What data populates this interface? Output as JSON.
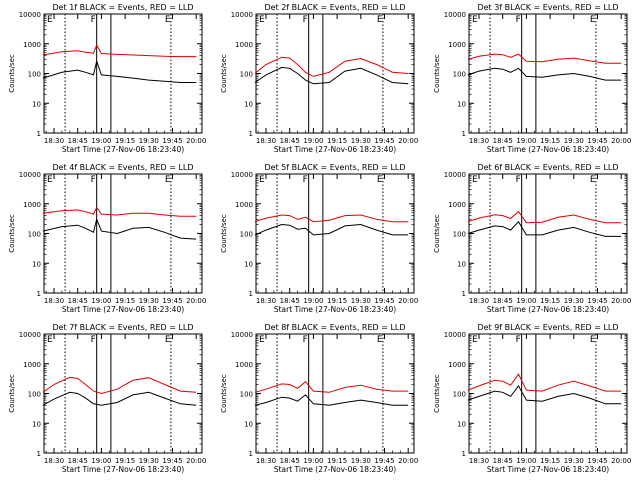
{
  "colors": {
    "events": "#000000",
    "lld": "#e00000",
    "marker": "#000000",
    "background": "#ffffff"
  },
  "shared": {
    "xlabel": "Start Time (27-Nov-06 18:23:40)",
    "ylabel": "Counts/sec",
    "x_tick_labels": [
      "18:30",
      "18:45",
      "19:00",
      "19:15",
      "19:30",
      "19:45",
      "20:00"
    ],
    "y_tick_labels": [
      "1",
      "10",
      "100",
      "1000",
      "10000"
    ],
    "event_labels": [
      "E",
      "F",
      "E"
    ]
  },
  "chart_data": [
    {
      "type": "line",
      "title": "Det 1f BLACK = Events, RED = LLD",
      "xlim": [
        "18:23:40",
        "20:03:40"
      ],
      "ylim": [
        1,
        10000
      ],
      "yscale": "log",
      "x": [
        "18:23",
        "18:35",
        "18:45",
        "18:50",
        "18:55",
        "18:57",
        "19:00",
        "19:10",
        "19:20",
        "19:30",
        "19:40",
        "19:50",
        "20:00"
      ],
      "series": [
        {
          "name": "Events",
          "values": [
            70,
            110,
            130,
            110,
            90,
            260,
            90,
            80,
            70,
            60,
            55,
            50,
            50
          ]
        },
        {
          "name": "LLD",
          "values": [
            420,
            540,
            580,
            520,
            480,
            900,
            470,
            440,
            420,
            400,
            380,
            370,
            370
          ]
        }
      ],
      "event_markers": [
        "18:37",
        "18:57",
        "19:06",
        "19:44"
      ]
    },
    {
      "type": "line",
      "title": "Det 2f BLACK = Events, RED = LLD",
      "xlim": [
        "18:23:40",
        "20:03:40"
      ],
      "ylim": [
        1,
        10000
      ],
      "yscale": "log",
      "x": [
        "18:23",
        "18:30",
        "18:40",
        "18:45",
        "18:50",
        "18:55",
        "19:00",
        "19:10",
        "19:20",
        "19:30",
        "19:40",
        "19:50",
        "20:00"
      ],
      "series": [
        {
          "name": "Events",
          "values": [
            50,
            90,
            160,
            150,
            100,
            60,
            45,
            50,
            120,
            150,
            90,
            50,
            45
          ]
        },
        {
          "name": "LLD",
          "values": [
            100,
            200,
            350,
            330,
            200,
            110,
            80,
            110,
            260,
            320,
            200,
            110,
            100
          ]
        }
      ],
      "event_markers": [
        "18:37",
        "18:57",
        "19:06",
        "19:44"
      ]
    },
    {
      "type": "line",
      "title": "Det 3f BLACK = Events, RED = LLD",
      "xlim": [
        "18:23:40",
        "20:03:40"
      ],
      "ylim": [
        1,
        10000
      ],
      "yscale": "log",
      "x": [
        "18:23",
        "18:30",
        "18:40",
        "18:45",
        "18:50",
        "18:55",
        "19:00",
        "19:10",
        "19:20",
        "19:30",
        "19:40",
        "19:50",
        "20:00"
      ],
      "series": [
        {
          "name": "Events",
          "values": [
            90,
            120,
            150,
            140,
            110,
            150,
            80,
            75,
            90,
            100,
            80,
            60,
            60
          ]
        },
        {
          "name": "LLD",
          "values": [
            300,
            380,
            450,
            430,
            350,
            450,
            260,
            250,
            300,
            330,
            270,
            220,
            220
          ]
        }
      ],
      "event_markers": [
        "18:37",
        "18:57",
        "19:06",
        "19:44"
      ]
    },
    {
      "type": "line",
      "title": "Det 4f BLACK = Events, RED = LLD",
      "xlim": [
        "18:23:40",
        "20:03:40"
      ],
      "ylim": [
        1,
        10000
      ],
      "yscale": "log",
      "x": [
        "18:23",
        "18:35",
        "18:45",
        "18:50",
        "18:55",
        "18:57",
        "19:00",
        "19:10",
        "19:20",
        "19:30",
        "19:40",
        "19:50",
        "20:00"
      ],
      "series": [
        {
          "name": "Events",
          "values": [
            120,
            170,
            190,
            150,
            110,
            300,
            120,
            100,
            150,
            160,
            110,
            70,
            65
          ]
        },
        {
          "name": "LLD",
          "values": [
            480,
            580,
            620,
            540,
            450,
            750,
            450,
            420,
            480,
            480,
            420,
            380,
            380
          ]
        }
      ],
      "event_markers": [
        "18:37",
        "18:57",
        "19:06",
        "19:44"
      ]
    },
    {
      "type": "line",
      "title": "Det 5f BLACK = Events, RED = LLD",
      "xlim": [
        "18:23:40",
        "20:03:40"
      ],
      "ylim": [
        1,
        10000
      ],
      "yscale": "log",
      "x": [
        "18:23",
        "18:30",
        "18:40",
        "18:45",
        "18:50",
        "18:55",
        "19:00",
        "19:10",
        "19:20",
        "19:30",
        "19:40",
        "19:50",
        "20:00"
      ],
      "series": [
        {
          "name": "Events",
          "values": [
            90,
            130,
            200,
            190,
            140,
            150,
            90,
            100,
            180,
            200,
            130,
            90,
            90
          ]
        },
        {
          "name": "LLD",
          "values": [
            250,
            330,
            420,
            400,
            300,
            350,
            250,
            280,
            400,
            420,
            300,
            250,
            250
          ]
        }
      ],
      "event_markers": [
        "18:37",
        "18:57",
        "19:06",
        "19:44"
      ]
    },
    {
      "type": "line",
      "title": "Det 6f BLACK = Events, RED = LLD",
      "xlim": [
        "18:23:40",
        "20:03:40"
      ],
      "ylim": [
        1,
        10000
      ],
      "yscale": "log",
      "x": [
        "18:23",
        "18:30",
        "18:40",
        "18:45",
        "18:50",
        "18:55",
        "19:00",
        "19:10",
        "19:20",
        "19:30",
        "19:40",
        "19:50",
        "20:00"
      ],
      "series": [
        {
          "name": "Events",
          "values": [
            100,
            130,
            180,
            170,
            130,
            250,
            90,
            90,
            130,
            160,
            110,
            80,
            80
          ]
        },
        {
          "name": "LLD",
          "values": [
            250,
            330,
            430,
            400,
            320,
            550,
            230,
            240,
            350,
            420,
            300,
            230,
            230
          ]
        }
      ],
      "event_markers": [
        "18:37",
        "18:57",
        "19:06",
        "19:44"
      ]
    },
    {
      "type": "line",
      "title": "Det 7f BLACK = Events, RED = LLD",
      "xlim": [
        "18:23:40",
        "20:03:40"
      ],
      "ylim": [
        1,
        10000
      ],
      "yscale": "log",
      "x": [
        "18:23",
        "18:30",
        "18:40",
        "18:45",
        "18:50",
        "18:55",
        "19:00",
        "19:10",
        "19:20",
        "19:30",
        "19:40",
        "19:50",
        "20:00"
      ],
      "series": [
        {
          "name": "Events",
          "values": [
            40,
            65,
            110,
            100,
            70,
            45,
            40,
            50,
            90,
            110,
            70,
            45,
            40
          ]
        },
        {
          "name": "LLD",
          "values": [
            110,
            200,
            350,
            320,
            200,
            120,
            100,
            140,
            280,
            340,
            200,
            120,
            110
          ]
        }
      ],
      "event_markers": [
        "18:37",
        "18:57",
        "19:06",
        "19:44"
      ]
    },
    {
      "type": "line",
      "title": "Det 8f BLACK = Events, RED = LLD",
      "xlim": [
        "18:23:40",
        "20:03:40"
      ],
      "ylim": [
        1,
        10000
      ],
      "yscale": "log",
      "x": [
        "18:23",
        "18:30",
        "18:40",
        "18:45",
        "18:50",
        "18:55",
        "19:00",
        "19:10",
        "19:20",
        "19:30",
        "19:40",
        "19:50",
        "20:00"
      ],
      "series": [
        {
          "name": "Events",
          "values": [
            40,
            50,
            75,
            70,
            55,
            90,
            45,
            40,
            50,
            60,
            50,
            40,
            40
          ]
        },
        {
          "name": "LLD",
          "values": [
            110,
            140,
            210,
            200,
            150,
            250,
            120,
            110,
            160,
            190,
            140,
            120,
            120
          ]
        }
      ],
      "event_markers": [
        "18:37",
        "18:57",
        "19:06",
        "19:44"
      ]
    },
    {
      "type": "line",
      "title": "Det 9f BLACK = Events, RED = LLD",
      "xlim": [
        "18:23:40",
        "20:03:40"
      ],
      "ylim": [
        1,
        10000
      ],
      "yscale": "log",
      "x": [
        "18:23",
        "18:30",
        "18:40",
        "18:45",
        "18:50",
        "18:55",
        "19:00",
        "19:10",
        "19:20",
        "19:30",
        "19:40",
        "19:50",
        "20:00"
      ],
      "series": [
        {
          "name": "Events",
          "values": [
            60,
            80,
            120,
            110,
            80,
            180,
            60,
            55,
            80,
            100,
            70,
            45,
            45
          ]
        },
        {
          "name": "LLD",
          "values": [
            130,
            180,
            280,
            260,
            190,
            450,
            130,
            120,
            190,
            260,
            180,
            120,
            120
          ]
        }
      ],
      "event_markers": [
        "18:37",
        "18:57",
        "19:06",
        "19:44"
      ]
    }
  ]
}
